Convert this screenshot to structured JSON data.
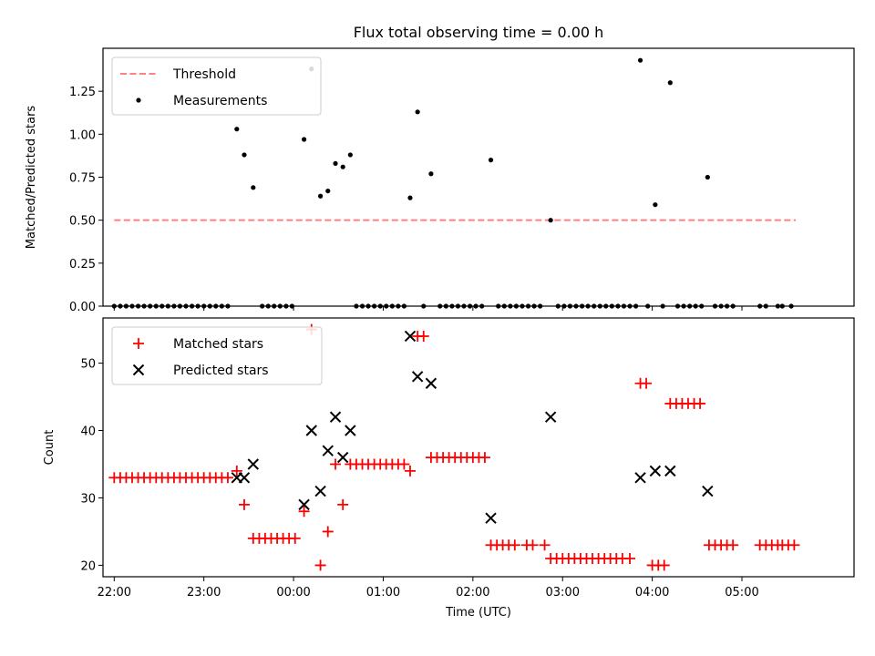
{
  "chart_data": [
    {
      "type": "scatter",
      "title": "Flux total observing time = 0.00 h",
      "xlabel": "",
      "ylabel": "Matched/Predicted stars",
      "xlim": [
        -0.125,
        8.25
      ],
      "ylim": [
        0,
        1.5
      ],
      "yticks": [
        0,
        0.25,
        0.5,
        0.75,
        1.0,
        1.25
      ],
      "ytick_labels": [
        "0.00",
        "0.25",
        "0.50",
        "0.75",
        "1.00",
        "1.25"
      ],
      "xticks": [
        0,
        1,
        2,
        3,
        4,
        5,
        6,
        7
      ],
      "threshold": {
        "name": "Threshold",
        "value": 0.5,
        "x": [
          0,
          7.6
        ],
        "color": "#ff8080"
      },
      "legend": [
        {
          "label": "Threshold",
          "kind": "dashed"
        },
        {
          "label": "Measurements",
          "kind": "dot"
        }
      ],
      "series": [
        {
          "name": "Measurements",
          "color": "#000000",
          "points": [
            [
              0,
              0
            ],
            [
              0.067,
              0
            ],
            [
              0.133,
              0
            ],
            [
              0.2,
              0
            ],
            [
              0.267,
              0
            ],
            [
              0.333,
              0
            ],
            [
              0.4,
              0
            ],
            [
              0.467,
              0
            ],
            [
              0.533,
              0
            ],
            [
              0.6,
              0
            ],
            [
              0.667,
              0
            ],
            [
              0.733,
              0
            ],
            [
              0.8,
              0
            ],
            [
              0.867,
              0
            ],
            [
              0.933,
              0
            ],
            [
              1.0,
              0
            ],
            [
              1.067,
              0
            ],
            [
              1.133,
              0
            ],
            [
              1.2,
              0
            ],
            [
              1.267,
              0
            ],
            [
              1.367,
              1.03
            ],
            [
              1.45,
              0.88
            ],
            [
              1.55,
              0.69
            ],
            [
              1.65,
              0
            ],
            [
              1.717,
              0
            ],
            [
              1.783,
              0
            ],
            [
              1.85,
              0
            ],
            [
              1.917,
              0
            ],
            [
              1.983,
              0
            ],
            [
              2.117,
              0.97
            ],
            [
              2.2,
              1.38
            ],
            [
              2.3,
              0.64
            ],
            [
              2.383,
              0.67
            ],
            [
              2.467,
              0.83
            ],
            [
              2.55,
              0.81
            ],
            [
              2.633,
              0.88
            ],
            [
              2.7,
              0
            ],
            [
              2.767,
              0
            ],
            [
              2.833,
              0
            ],
            [
              2.9,
              0
            ],
            [
              2.967,
              0
            ],
            [
              3.033,
              0
            ],
            [
              3.1,
              0
            ],
            [
              3.167,
              0
            ],
            [
              3.233,
              0
            ],
            [
              3.3,
              0.63
            ],
            [
              3.383,
              1.13
            ],
            [
              3.45,
              0
            ],
            [
              3.533,
              0.77
            ],
            [
              3.633,
              0
            ],
            [
              3.7,
              0
            ],
            [
              3.767,
              0
            ],
            [
              3.833,
              0
            ],
            [
              3.9,
              0
            ],
            [
              3.967,
              0
            ],
            [
              4.033,
              0
            ],
            [
              4.1,
              0
            ],
            [
              4.2,
              0.85
            ],
            [
              4.283,
              0
            ],
            [
              4.35,
              0
            ],
            [
              4.417,
              0
            ],
            [
              4.483,
              0
            ],
            [
              4.55,
              0
            ],
            [
              4.617,
              0
            ],
            [
              4.683,
              0
            ],
            [
              4.75,
              0
            ],
            [
              4.867,
              0.5
            ],
            [
              4.95,
              0
            ],
            [
              5.017,
              0
            ],
            [
              5.083,
              0
            ],
            [
              5.15,
              0
            ],
            [
              5.217,
              0
            ],
            [
              5.283,
              0
            ],
            [
              5.35,
              0
            ],
            [
              5.417,
              0
            ],
            [
              5.483,
              0
            ],
            [
              5.55,
              0
            ],
            [
              5.617,
              0
            ],
            [
              5.683,
              0
            ],
            [
              5.75,
              0
            ],
            [
              5.817,
              0
            ],
            [
              5.867,
              1.43
            ],
            [
              5.95,
              0
            ],
            [
              6.033,
              0.59
            ],
            [
              6.117,
              0
            ],
            [
              6.2,
              1.3
            ],
            [
              6.283,
              0
            ],
            [
              6.35,
              0
            ],
            [
              6.417,
              0
            ],
            [
              6.483,
              0
            ],
            [
              6.55,
              0
            ],
            [
              6.617,
              0.75
            ],
            [
              6.7,
              0
            ],
            [
              6.767,
              0
            ],
            [
              6.833,
              0
            ],
            [
              6.9,
              0
            ],
            [
              7.2,
              0
            ],
            [
              7.267,
              0
            ],
            [
              7.4,
              0
            ],
            [
              7.45,
              0
            ],
            [
              7.55,
              0
            ]
          ]
        }
      ]
    },
    {
      "type": "scatter",
      "title": "",
      "xlabel": "Time (UTC)",
      "ylabel": "Count",
      "xlim": [
        -0.125,
        8.25
      ],
      "ylim": [
        18.3,
        56.7
      ],
      "yticks": [
        20,
        30,
        40,
        50
      ],
      "ytick_labels": [
        "20",
        "30",
        "40",
        "50"
      ],
      "xticks": [
        0,
        1,
        2,
        3,
        4,
        5,
        6,
        7
      ],
      "xtick_labels": [
        "22:00",
        "23:00",
        "00:00",
        "01:00",
        "02:00",
        "03:00",
        "04:00",
        "05:00"
      ],
      "legend": [
        {
          "label": "Matched stars",
          "kind": "plus"
        },
        {
          "label": "Predicted stars",
          "kind": "cross"
        }
      ],
      "series": [
        {
          "name": "Matched stars",
          "marker": "+",
          "color": "#ff0000",
          "points": [
            [
              0,
              33
            ],
            [
              0.067,
              33
            ],
            [
              0.133,
              33
            ],
            [
              0.2,
              33
            ],
            [
              0.267,
              33
            ],
            [
              0.333,
              33
            ],
            [
              0.4,
              33
            ],
            [
              0.467,
              33
            ],
            [
              0.533,
              33
            ],
            [
              0.6,
              33
            ],
            [
              0.667,
              33
            ],
            [
              0.733,
              33
            ],
            [
              0.8,
              33
            ],
            [
              0.867,
              33
            ],
            [
              0.933,
              33
            ],
            [
              1.0,
              33
            ],
            [
              1.067,
              33
            ],
            [
              1.133,
              33
            ],
            [
              1.2,
              33
            ],
            [
              1.267,
              33
            ],
            [
              1.367,
              34
            ],
            [
              1.45,
              29
            ],
            [
              1.55,
              24
            ],
            [
              1.617,
              24
            ],
            [
              1.683,
              24
            ],
            [
              1.75,
              24
            ],
            [
              1.817,
              24
            ],
            [
              1.883,
              24
            ],
            [
              1.95,
              24
            ],
            [
              2.017,
              24
            ],
            [
              2.117,
              28
            ],
            [
              2.2,
              55
            ],
            [
              2.3,
              20
            ],
            [
              2.383,
              25
            ],
            [
              2.467,
              35
            ],
            [
              2.55,
              29
            ],
            [
              2.633,
              35
            ],
            [
              2.7,
              35
            ],
            [
              2.767,
              35
            ],
            [
              2.833,
              35
            ],
            [
              2.9,
              35
            ],
            [
              2.967,
              35
            ],
            [
              3.033,
              35
            ],
            [
              3.1,
              35
            ],
            [
              3.167,
              35
            ],
            [
              3.233,
              35
            ],
            [
              3.3,
              34
            ],
            [
              3.383,
              54
            ],
            [
              3.45,
              54
            ],
            [
              3.533,
              36
            ],
            [
              3.6,
              36
            ],
            [
              3.667,
              36
            ],
            [
              3.733,
              36
            ],
            [
              3.8,
              36
            ],
            [
              3.867,
              36
            ],
            [
              3.933,
              36
            ],
            [
              4.0,
              36
            ],
            [
              4.067,
              36
            ],
            [
              4.133,
              36
            ],
            [
              4.2,
              23
            ],
            [
              4.267,
              23
            ],
            [
              4.333,
              23
            ],
            [
              4.4,
              23
            ],
            [
              4.467,
              23
            ],
            [
              4.6,
              23
            ],
            [
              4.667,
              23
            ],
            [
              4.8,
              23
            ],
            [
              4.867,
              21
            ],
            [
              4.933,
              21
            ],
            [
              5.0,
              21
            ],
            [
              5.067,
              21
            ],
            [
              5.133,
              21
            ],
            [
              5.2,
              21
            ],
            [
              5.267,
              21
            ],
            [
              5.333,
              21
            ],
            [
              5.4,
              21
            ],
            [
              5.467,
              21
            ],
            [
              5.533,
              21
            ],
            [
              5.6,
              21
            ],
            [
              5.667,
              21
            ],
            [
              5.75,
              21
            ],
            [
              5.867,
              47
            ],
            [
              5.933,
              47
            ],
            [
              6.0,
              20
            ],
            [
              6.067,
              20
            ],
            [
              6.133,
              20
            ],
            [
              6.2,
              44
            ],
            [
              6.267,
              44
            ],
            [
              6.333,
              44
            ],
            [
              6.4,
              44
            ],
            [
              6.467,
              44
            ],
            [
              6.533,
              44
            ],
            [
              6.633,
              23
            ],
            [
              6.7,
              23
            ],
            [
              6.767,
              23
            ],
            [
              6.833,
              23
            ],
            [
              6.9,
              23
            ],
            [
              7.2,
              23
            ],
            [
              7.267,
              23
            ],
            [
              7.333,
              23
            ],
            [
              7.4,
              23
            ],
            [
              7.45,
              23
            ],
            [
              7.517,
              23
            ],
            [
              7.583,
              23
            ]
          ]
        },
        {
          "name": "Predicted stars",
          "marker": "x",
          "color": "#000000",
          "points": [
            [
              1.367,
              33
            ],
            [
              1.45,
              33
            ],
            [
              1.55,
              35
            ],
            [
              2.117,
              29
            ],
            [
              2.2,
              40
            ],
            [
              2.3,
              31
            ],
            [
              2.383,
              37
            ],
            [
              2.467,
              42
            ],
            [
              2.55,
              36
            ],
            [
              2.633,
              40
            ],
            [
              3.3,
              54
            ],
            [
              3.383,
              48
            ],
            [
              3.533,
              47
            ],
            [
              4.2,
              27
            ],
            [
              4.867,
              42
            ],
            [
              5.867,
              33
            ],
            [
              6.033,
              34
            ],
            [
              6.2,
              34
            ],
            [
              6.617,
              31
            ]
          ]
        }
      ]
    }
  ]
}
